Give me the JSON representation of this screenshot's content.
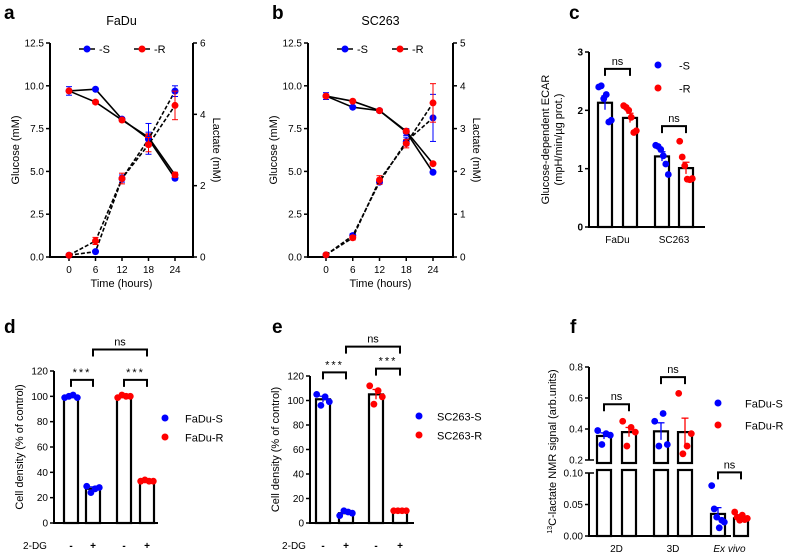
{
  "panel_labels": [
    "a",
    "b",
    "c",
    "d",
    "e",
    "f"
  ],
  "chart_data": [
    {
      "id": "a",
      "type": "line",
      "title": "FaDu",
      "xlabel": "Time (hours)",
      "ylabel": "Glucose (mM)",
      "y2label": "Lactate (mM)",
      "x": [
        0,
        6,
        12,
        18,
        24
      ],
      "ylim": [
        0,
        12.5
      ],
      "yticks": [
        "0.0",
        "2.5",
        "5.0",
        "7.5",
        "10.0",
        "12.5"
      ],
      "y2lim": [
        0,
        6
      ],
      "y2ticks": [
        "0",
        "2",
        "4",
        "6"
      ],
      "legend": [
        {
          "label": "-S",
          "color": "#0000ff"
        },
        {
          "label": "-R",
          "color": "#ff0000"
        }
      ],
      "series": [
        {
          "name": "-S glucose",
          "axis": "left",
          "style": "solid",
          "color": "#0000ff",
          "y": [
            9.7,
            9.8,
            8.05,
            6.9,
            4.6
          ],
          "err": [
            0.25,
            0.05,
            0.1,
            0.9,
            0.1
          ]
        },
        {
          "name": "-R glucose",
          "axis": "left",
          "style": "solid",
          "color": "#ff0000",
          "y": [
            9.7,
            9.05,
            8.0,
            7.0,
            4.8
          ],
          "err": [
            0.1,
            0.1,
            0.1,
            0.2,
            0.15
          ]
        },
        {
          "name": "-S lactate",
          "axis": "right",
          "style": "dashed",
          "color": "#0000ff",
          "y": [
            0.05,
            0.15,
            2.2,
            3.3,
            4.65
          ],
          "err": [
            0,
            0,
            0.1,
            0.2,
            0.15
          ]
        },
        {
          "name": "-R lactate",
          "axis": "right",
          "style": "dashed",
          "color": "#ff0000",
          "y": [
            0.05,
            0.45,
            2.2,
            3.15,
            4.25
          ],
          "err": [
            0,
            0.1,
            0.15,
            0.2,
            0.4
          ]
        }
      ]
    },
    {
      "id": "b",
      "type": "line",
      "title": "SC263",
      "xlabel": "Time (hours)",
      "ylabel": "Glucose (mM)",
      "y2label": "Lactate (mM)",
      "x": [
        0,
        6,
        12,
        18,
        24
      ],
      "ylim": [
        0,
        12.5
      ],
      "yticks": [
        "0.0",
        "2.5",
        "5.0",
        "7.5",
        "10.0",
        "12.5"
      ],
      "y2lim": [
        0,
        5
      ],
      "y2ticks": [
        "0",
        "1",
        "2",
        "3",
        "4",
        "5"
      ],
      "legend": [
        {
          "label": "-S",
          "color": "#0000ff"
        },
        {
          "label": "-R",
          "color": "#ff0000"
        }
      ],
      "series": [
        {
          "name": "-S glucose",
          "axis": "left",
          "style": "solid",
          "color": "#0000ff",
          "y": [
            9.4,
            8.75,
            8.55,
            7.3,
            4.95
          ],
          "err": [
            0.2,
            0.05,
            0.1,
            0.2,
            0.05
          ]
        },
        {
          "name": "-R glucose",
          "axis": "left",
          "style": "solid",
          "color": "#ff0000",
          "y": [
            9.4,
            9.1,
            8.55,
            7.35,
            5.45
          ],
          "err": [
            0.1,
            0.05,
            0.1,
            0.1,
            0.05
          ]
        },
        {
          "name": "-S lactate",
          "axis": "right",
          "style": "dashed",
          "color": "#0000ff",
          "y": [
            0.05,
            0.5,
            1.75,
            2.7,
            3.25
          ],
          "err": [
            0,
            0.05,
            0.05,
            0.1,
            0.55
          ]
        },
        {
          "name": "-R lactate",
          "axis": "right",
          "style": "dashed",
          "color": "#ff0000",
          "y": [
            0.05,
            0.45,
            1.8,
            2.65,
            3.6
          ],
          "err": [
            0,
            0.05,
            0.1,
            0.1,
            0.45
          ]
        }
      ]
    },
    {
      "id": "c",
      "type": "bar",
      "ylabel": [
        "Glucose-dependent  ECAR",
        "(mpH/min/µg prot.)"
      ],
      "ylim": [
        0,
        3
      ],
      "yticks": [
        "0",
        "1",
        "2",
        "3"
      ],
      "groups": [
        {
          "label": "FaDu",
          "bars": [
            0,
            1
          ]
        },
        {
          "label": "SC263",
          "bars": [
            2,
            3
          ]
        }
      ],
      "legend": [
        {
          "label": "-S",
          "color": "#0000ff"
        },
        {
          "label": "-R",
          "color": "#ff0000"
        }
      ],
      "bars": [
        {
          "name": "FaDu-S",
          "color": "#0000ff",
          "mean": 2.13,
          "sem": 0.12,
          "points": [
            2.4,
            2.42,
            2.2,
            2.27,
            1.8,
            1.83
          ]
        },
        {
          "name": "FaDu-R",
          "color": "#ff0000",
          "mean": 1.87,
          "sem": 0.08,
          "points": [
            2.08,
            2.05,
            2.0,
            1.88,
            1.62,
            1.65
          ]
        },
        {
          "name": "SC263-S",
          "color": "#0000ff",
          "mean": 1.21,
          "sem": 0.08,
          "points": [
            1.4,
            1.38,
            1.33,
            1.22,
            1.08,
            0.9
          ]
        },
        {
          "name": "SC263-R",
          "color": "#ff0000",
          "mean": 1.01,
          "sem": 0.1,
          "points": [
            1.47,
            1.2,
            1.05,
            0.82,
            0.81,
            0.83
          ]
        }
      ],
      "brackets": [
        {
          "from": 0,
          "to": 1,
          "y": 2.71,
          "label": "ns"
        },
        {
          "from": 2,
          "to": 3,
          "y": 1.73,
          "label": "ns"
        }
      ]
    },
    {
      "id": "d",
      "type": "bar",
      "ylabel": [
        "Cell density (% of control)"
      ],
      "ylim": [
        0,
        120
      ],
      "yticks": [
        "0",
        "20",
        "40",
        "60",
        "80",
        "100",
        "120"
      ],
      "row_label": "2-DG",
      "bar_labels": [
        "-",
        "+",
        "-",
        "+"
      ],
      "legend": [
        {
          "label": "FaDu-S",
          "color": "#0000ff"
        },
        {
          "label": "FaDu-R",
          "color": "#ff0000"
        }
      ],
      "bars": [
        {
          "name": "FaDu-S control",
          "color": "#0000ff",
          "mean": 100,
          "sem": 0.5,
          "points": [
            99,
            100,
            101,
            99
          ]
        },
        {
          "name": "FaDu-S 2-DG",
          "color": "#0000ff",
          "mean": 27,
          "sem": 1.5,
          "points": [
            29,
            24,
            27,
            28
          ]
        },
        {
          "name": "FaDu-R control",
          "color": "#ff0000",
          "mean": 100,
          "sem": 0.6,
          "points": [
            99,
            101,
            100,
            100
          ]
        },
        {
          "name": "FaDu-R 2-DG",
          "color": "#ff0000",
          "mean": 33,
          "sem": 0.3,
          "points": [
            33,
            34,
            33,
            33
          ]
        }
      ],
      "brackets": [
        {
          "from": 0,
          "to": 1,
          "y": 113,
          "label": "***"
        },
        {
          "from": 2,
          "to": 3,
          "y": 113,
          "label": "***"
        },
        {
          "from": 1,
          "to": 3,
          "y": 137,
          "label": "ns"
        }
      ]
    },
    {
      "id": "e",
      "type": "bar",
      "ylabel": [
        "Cell density (% of control)"
      ],
      "ylim": [
        0,
        120
      ],
      "yticks": [
        "0",
        "20",
        "40",
        "60",
        "80",
        "100",
        "120"
      ],
      "row_label": "2-DG",
      "bar_labels": [
        "-",
        "+",
        "-",
        "+"
      ],
      "legend": [
        {
          "label": "SC263-S",
          "color": "#0000ff"
        },
        {
          "label": "SC263-R",
          "color": "#ff0000"
        }
      ],
      "bars": [
        {
          "name": "SC263-S control",
          "color": "#0000ff",
          "mean": 101,
          "sem": 2.5,
          "points": [
            105,
            96,
            103,
            99
          ]
        },
        {
          "name": "SC263-S 2-DG",
          "color": "#0000ff",
          "mean": 8,
          "sem": 1,
          "points": [
            6,
            10,
            9,
            8
          ]
        },
        {
          "name": "SC263-R control",
          "color": "#ff0000",
          "mean": 105,
          "sem": 4,
          "points": [
            112,
            97,
            108,
            103
          ]
        },
        {
          "name": "SC263-R 2-DG",
          "color": "#ff0000",
          "mean": 10,
          "sem": 0.2,
          "points": [
            10,
            10,
            10,
            10
          ]
        }
      ],
      "brackets": [
        {
          "from": 0,
          "to": 1,
          "y": 123,
          "label": "***"
        },
        {
          "from": 2,
          "to": 3,
          "y": 126,
          "label": "***"
        },
        {
          "from": 1,
          "to": 3,
          "y": 144,
          "label": "ns"
        }
      ]
    },
    {
      "id": "f",
      "type": "bar",
      "ylabel": [
        "13",
        "C-lactate NMR signal (arb.units)"
      ],
      "ylim_upper": [
        0.2,
        0.8
      ],
      "yticks_upper": [
        "0.2",
        "0.4",
        "0.6",
        "0.8"
      ],
      "ylim_lower": [
        0,
        0.1
      ],
      "yticks_lower": [
        "0.00",
        "0.05",
        "0.10"
      ],
      "groups": [
        {
          "label": "2D",
          "bars": [
            0,
            1
          ]
        },
        {
          "label": "3D",
          "bars": [
            2,
            3
          ]
        },
        {
          "label": "Ex vivo",
          "bars": [
            4,
            5
          ],
          "italic": true
        }
      ],
      "legend": [
        {
          "label": "FaDu-S",
          "color": "#0000ff"
        },
        {
          "label": "FaDu-R",
          "color": "#ff0000"
        }
      ],
      "bars": [
        {
          "name": "2D FaDu-S",
          "color": "#0000ff",
          "mean": 0.355,
          "sem": 0.02,
          "points": [
            0.39,
            0.3,
            0.37,
            0.36
          ]
        },
        {
          "name": "2D FaDu-R",
          "color": "#ff0000",
          "mean": 0.38,
          "sem": 0.03,
          "points": [
            0.45,
            0.29,
            0.41,
            0.38
          ]
        },
        {
          "name": "3D FaDu-S",
          "color": "#0000ff",
          "mean": 0.385,
          "sem": 0.055,
          "points": [
            0.45,
            0.29,
            0.5,
            0.3
          ]
        },
        {
          "name": "3D FaDu-R",
          "color": "#ff0000",
          "mean": 0.38,
          "sem": 0.09,
          "points": [
            0.63,
            0.24,
            0.29,
            0.37
          ]
        },
        {
          "name": "Ex vivo FaDu-S",
          "color": "#0000ff",
          "mean": 0.035,
          "sem": 0.01,
          "points": [
            0.08,
            0.043,
            0.03,
            0.013,
            0.025,
            0.022
          ]
        },
        {
          "name": "Ex vivo FaDu-R",
          "color": "#ff0000",
          "mean": 0.028,
          "sem": 0.003,
          "points": [
            0.038,
            0.03,
            0.025,
            0.033,
            0.026,
            0.028
          ]
        }
      ],
      "brackets": [
        {
          "from": 0,
          "to": 1,
          "y": 0.56,
          "label": "ns"
        },
        {
          "from": 2,
          "to": 3,
          "y": 0.735,
          "label": "ns"
        },
        {
          "from": 4,
          "to": 5,
          "y": 0.105,
          "label": "ns"
        }
      ]
    }
  ]
}
